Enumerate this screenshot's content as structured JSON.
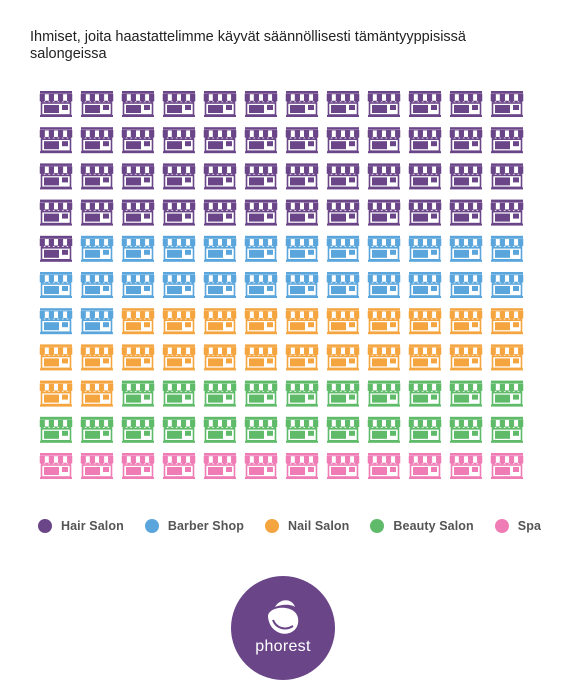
{
  "title": "Ihmiset, joita haastattelimme käyvät säännöllisesti tämäntyyppisissä salongeissa",
  "chart_data": {
    "type": "pictogram",
    "icon": "storefront-icon",
    "total_icons": 132,
    "columns": 12,
    "series": [
      {
        "name": "Hair Salon",
        "count": 49,
        "color": "#6a4588"
      },
      {
        "name": "Barber Shop",
        "count": 25,
        "color": "#5aa6dc"
      },
      {
        "name": "Nail Salon",
        "count": 24,
        "color": "#f5a53f"
      },
      {
        "name": "Beauty Salon",
        "count": 22,
        "color": "#5fbb69"
      },
      {
        "name": "Spa",
        "count": 12,
        "color": "#f07cb6"
      }
    ],
    "legend_position": "bottom"
  },
  "logo": {
    "text": "phorest",
    "icon": "phorest-logo-icon",
    "color": "#6a4588"
  }
}
